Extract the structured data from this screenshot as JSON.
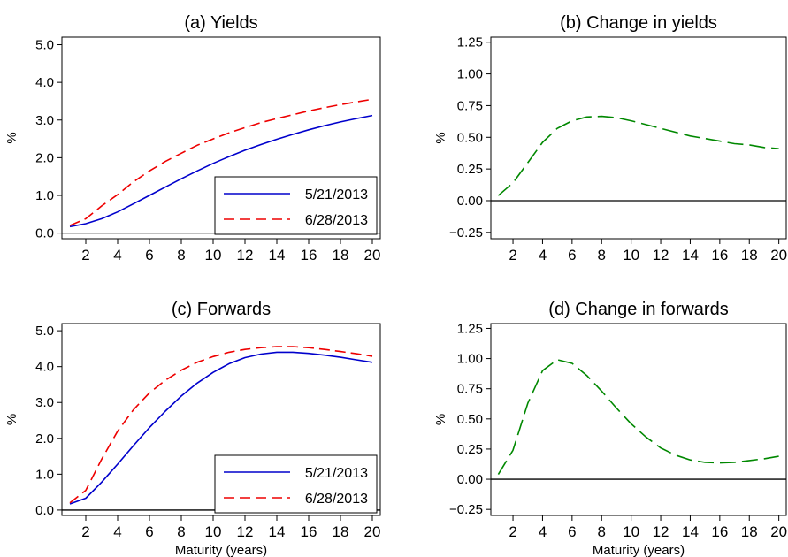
{
  "chart_data": [
    {
      "type": "line",
      "title": "(a) Yields",
      "xlabel": "",
      "ylabel": "%",
      "xlim": [
        0.5,
        20.5
      ],
      "ylim": [
        -0.15,
        5.2
      ],
      "xticks": [
        2,
        4,
        6,
        8,
        10,
        12,
        14,
        16,
        18,
        20
      ],
      "yticks": [
        0.0,
        1.0,
        2.0,
        3.0,
        4.0,
        5.0
      ],
      "ytick_labels": [
        "0.0",
        "1.0",
        "2.0",
        "3.0",
        "4.0",
        "5.0"
      ],
      "zero_line": true,
      "grid": false,
      "legend": "bottom-right",
      "series": [
        {
          "name": "5/21/2013",
          "color": "#0000cc",
          "dash": "solid",
          "x": [
            1,
            2,
            3,
            4,
            5,
            6,
            7,
            8,
            9,
            10,
            11,
            12,
            13,
            14,
            15,
            16,
            17,
            18,
            19,
            20
          ],
          "values": [
            0.17,
            0.25,
            0.38,
            0.56,
            0.78,
            1.0,
            1.22,
            1.44,
            1.65,
            1.85,
            2.03,
            2.2,
            2.35,
            2.49,
            2.62,
            2.74,
            2.85,
            2.95,
            3.04,
            3.12
          ]
        },
        {
          "name": "6/28/2013",
          "color": "#ee0000",
          "dash": "dashed",
          "x": [
            1,
            2,
            3,
            4,
            5,
            6,
            7,
            8,
            9,
            10,
            11,
            12,
            13,
            14,
            15,
            16,
            17,
            18,
            19,
            20
          ],
          "values": [
            0.2,
            0.38,
            0.72,
            1.02,
            1.36,
            1.65,
            1.9,
            2.12,
            2.33,
            2.5,
            2.66,
            2.8,
            2.93,
            3.04,
            3.14,
            3.24,
            3.33,
            3.41,
            3.48,
            3.55
          ]
        }
      ]
    },
    {
      "type": "line",
      "title": "(b) Change in yields",
      "xlabel": "",
      "ylabel": "%",
      "xlim": [
        0.5,
        20.5
      ],
      "ylim": [
        -0.3,
        1.29
      ],
      "xticks": [
        2,
        4,
        6,
        8,
        10,
        12,
        14,
        16,
        18,
        20
      ],
      "yticks": [
        -0.25,
        0.0,
        0.25,
        0.5,
        0.75,
        1.0,
        1.25
      ],
      "ytick_labels": [
        "−0.25",
        "0.00",
        "0.25",
        "0.50",
        "0.75",
        "1.00",
        "1.25"
      ],
      "zero_line": true,
      "grid": false,
      "series": [
        {
          "color": "#008800",
          "dash": "longdash",
          "x": [
            1,
            2,
            3,
            4,
            5,
            6,
            7,
            8,
            9,
            10,
            11,
            12,
            13,
            14,
            15,
            16,
            17,
            18,
            19,
            20
          ],
          "values": [
            0.04,
            0.14,
            0.3,
            0.46,
            0.57,
            0.63,
            0.66,
            0.665,
            0.655,
            0.63,
            0.6,
            0.57,
            0.54,
            0.51,
            0.49,
            0.47,
            0.45,
            0.44,
            0.42,
            0.41
          ]
        }
      ]
    },
    {
      "type": "line",
      "title": "(c) Forwards",
      "xlabel": "Maturity (years)",
      "ylabel": "%",
      "xlim": [
        0.5,
        20.5
      ],
      "ylim": [
        -0.15,
        5.2
      ],
      "xticks": [
        2,
        4,
        6,
        8,
        10,
        12,
        14,
        16,
        18,
        20
      ],
      "yticks": [
        0.0,
        1.0,
        2.0,
        3.0,
        4.0,
        5.0
      ],
      "ytick_labels": [
        "0.0",
        "1.0",
        "2.0",
        "3.0",
        "4.0",
        "5.0"
      ],
      "zero_line": true,
      "grid": false,
      "legend": "bottom-right",
      "series": [
        {
          "name": "5/21/2013",
          "color": "#0000cc",
          "dash": "solid",
          "x": [
            1,
            2,
            3,
            4,
            5,
            6,
            7,
            8,
            9,
            10,
            11,
            12,
            13,
            14,
            15,
            16,
            17,
            18,
            19,
            20
          ],
          "values": [
            0.17,
            0.33,
            0.78,
            1.28,
            1.8,
            2.3,
            2.76,
            3.18,
            3.54,
            3.84,
            4.08,
            4.25,
            4.35,
            4.4,
            4.4,
            4.37,
            4.32,
            4.26,
            4.19,
            4.12
          ]
        },
        {
          "name": "6/28/2013",
          "color": "#ee0000",
          "dash": "dashed",
          "x": [
            1,
            2,
            3,
            4,
            5,
            6,
            7,
            8,
            9,
            10,
            11,
            12,
            13,
            14,
            15,
            16,
            17,
            18,
            19,
            20
          ],
          "values": [
            0.2,
            0.55,
            1.42,
            2.2,
            2.8,
            3.27,
            3.62,
            3.9,
            4.12,
            4.28,
            4.4,
            4.48,
            4.53,
            4.56,
            4.56,
            4.53,
            4.48,
            4.42,
            4.36,
            4.29
          ]
        }
      ]
    },
    {
      "type": "line",
      "title": "(d) Change in forwards",
      "xlabel": "Maturity (years)",
      "ylabel": "%",
      "xlim": [
        0.5,
        20.5
      ],
      "ylim": [
        -0.3,
        1.29
      ],
      "xticks": [
        2,
        4,
        6,
        8,
        10,
        12,
        14,
        16,
        18,
        20
      ],
      "yticks": [
        -0.25,
        0.0,
        0.25,
        0.5,
        0.75,
        1.0,
        1.25
      ],
      "ytick_labels": [
        "−0.25",
        "0.00",
        "0.25",
        "0.50",
        "0.75",
        "1.00",
        "1.25"
      ],
      "zero_line": true,
      "grid": false,
      "series": [
        {
          "color": "#008800",
          "dash": "longdash",
          "x": [
            1,
            2,
            3,
            4,
            5,
            6,
            7,
            8,
            9,
            10,
            11,
            12,
            13,
            14,
            15,
            16,
            17,
            18,
            19,
            20
          ],
          "values": [
            0.04,
            0.24,
            0.63,
            0.9,
            0.99,
            0.96,
            0.86,
            0.73,
            0.59,
            0.46,
            0.35,
            0.26,
            0.2,
            0.16,
            0.14,
            0.135,
            0.14,
            0.155,
            0.17,
            0.19
          ]
        }
      ]
    }
  ]
}
